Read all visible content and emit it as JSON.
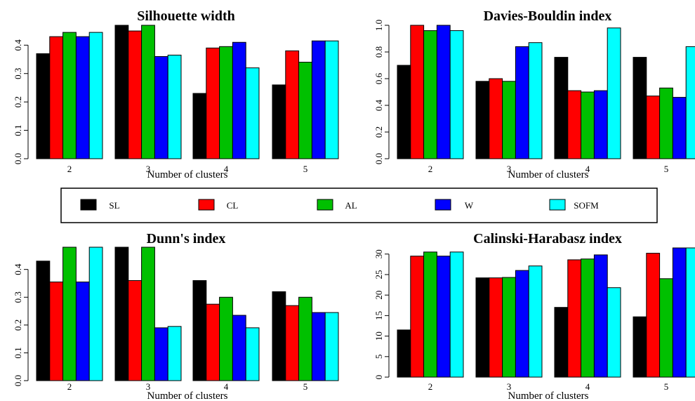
{
  "colors": {
    "SL": "#000000",
    "CL": "#ff0000",
    "AL": "#00c000",
    "W": "#0000ff",
    "SOFM": "#00ffff"
  },
  "legend": {
    "entries": [
      "SL",
      "CL",
      "AL",
      "W",
      "SOFM"
    ]
  },
  "chart_data": [
    {
      "type": "bar",
      "title": "Silhouette width",
      "xlabel": "Number of clusters",
      "ylabel": "",
      "categories": [
        "2",
        "3",
        "4",
        "5"
      ],
      "ylim": [
        0,
        0.47
      ],
      "yticks": [
        "0.0",
        "0.1",
        "0.2",
        "0.3",
        "0.4"
      ],
      "series": [
        {
          "name": "SL",
          "values": [
            0.37,
            0.47,
            0.23,
            0.26
          ]
        },
        {
          "name": "CL",
          "values": [
            0.43,
            0.45,
            0.39,
            0.38
          ]
        },
        {
          "name": "AL",
          "values": [
            0.445,
            0.47,
            0.395,
            0.34
          ]
        },
        {
          "name": "W",
          "values": [
            0.43,
            0.36,
            0.41,
            0.415
          ]
        },
        {
          "name": "SOFM",
          "values": [
            0.445,
            0.365,
            0.32,
            0.415
          ]
        }
      ]
    },
    {
      "type": "bar",
      "title": "Davies-Bouldin index",
      "xlabel": "Number of clusters",
      "ylabel": "",
      "categories": [
        "2",
        "3",
        "4",
        "5"
      ],
      "ylim": [
        0,
        1.0
      ],
      "yticks": [
        "0.0",
        "0.2",
        "0.4",
        "0.6",
        "0.8",
        "1.0"
      ],
      "series": [
        {
          "name": "SL",
          "values": [
            0.7,
            0.58,
            0.76,
            0.76
          ]
        },
        {
          "name": "CL",
          "values": [
            1.0,
            0.6,
            0.51,
            0.47
          ]
        },
        {
          "name": "AL",
          "values": [
            0.96,
            0.58,
            0.5,
            0.53
          ]
        },
        {
          "name": "W",
          "values": [
            1.0,
            0.84,
            0.51,
            0.46
          ]
        },
        {
          "name": "SOFM",
          "values": [
            0.96,
            0.87,
            0.98,
            0.84
          ]
        }
      ]
    },
    {
      "type": "bar",
      "title": "Dunn's index",
      "xlabel": "Number of clusters",
      "ylabel": "",
      "categories": [
        "2",
        "3",
        "4",
        "5"
      ],
      "ylim": [
        0,
        0.48
      ],
      "yticks": [
        "0.0",
        "0.1",
        "0.2",
        "0.3",
        "0.4"
      ],
      "series": [
        {
          "name": "SL",
          "values": [
            0.43,
            0.48,
            0.36,
            0.32
          ]
        },
        {
          "name": "CL",
          "values": [
            0.355,
            0.36,
            0.275,
            0.27
          ]
        },
        {
          "name": "AL",
          "values": [
            0.48,
            0.48,
            0.3,
            0.3
          ]
        },
        {
          "name": "W",
          "values": [
            0.355,
            0.19,
            0.235,
            0.245
          ]
        },
        {
          "name": "SOFM",
          "values": [
            0.48,
            0.195,
            0.19,
            0.245
          ]
        }
      ]
    },
    {
      "type": "bar",
      "title": "Calinski-Harabasz index",
      "xlabel": "Number of clusters",
      "ylabel": "",
      "categories": [
        "2",
        "3",
        "4",
        "5"
      ],
      "ylim": [
        0,
        31.5
      ],
      "yticks": [
        "0",
        "5",
        "10",
        "15",
        "20",
        "25",
        "30"
      ],
      "series": [
        {
          "name": "SL",
          "values": [
            11.5,
            24.2,
            17.0,
            14.7
          ]
        },
        {
          "name": "CL",
          "values": [
            29.5,
            24.2,
            28.6,
            30.2
          ]
        },
        {
          "name": "AL",
          "values": [
            30.5,
            24.3,
            28.8,
            24.0
          ]
        },
        {
          "name": "W",
          "values": [
            29.5,
            26.0,
            29.8,
            31.5
          ]
        },
        {
          "name": "SOFM",
          "values": [
            30.5,
            27.1,
            21.8,
            31.5
          ]
        }
      ]
    }
  ]
}
